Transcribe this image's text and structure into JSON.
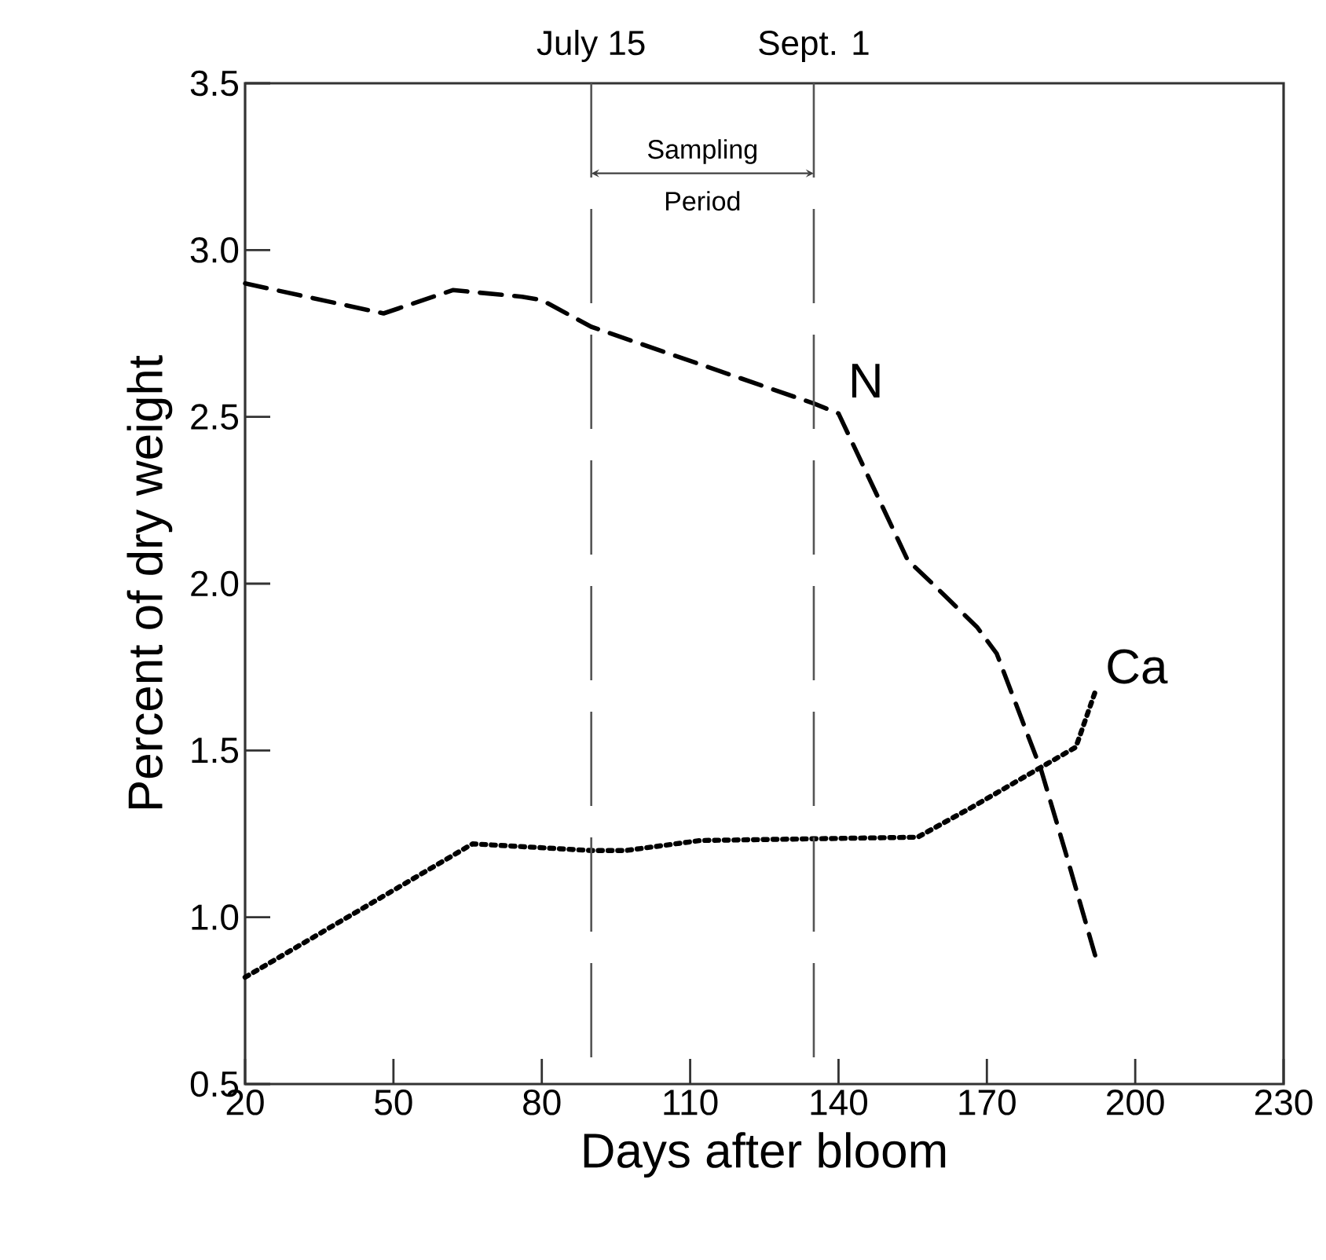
{
  "chart_data": {
    "type": "line",
    "xlabel": "Days after bloom",
    "ylabel": "Percent of dry weight",
    "xlim": [
      20,
      230
    ],
    "xticks": [
      20,
      50,
      80,
      110,
      140,
      170,
      200,
      230
    ],
    "ylim": [
      0.5,
      3.5
    ],
    "yticks": [
      0.5,
      {
        "value": 1,
        "label": "1.0"
      },
      1.5,
      {
        "value": 2,
        "label": "2.0"
      },
      2.5,
      {
        "value": 3,
        "label": "3.0"
      },
      3.5
    ],
    "grid": false,
    "legend": false,
    "marker": "none",
    "series": [
      {
        "name": "N",
        "color": "#000000",
        "line_style": "dashed",
        "x": [
          20,
          48,
          62,
          76,
          80,
          90,
          135,
          140,
          154,
          159,
          168,
          172,
          181,
          186,
          192
        ],
        "values": [
          2.9,
          2.81,
          2.88,
          2.86,
          2.85,
          2.77,
          2.54,
          2.51,
          2.07,
          2.0,
          1.87,
          1.79,
          1.44,
          1.19,
          0.88
        ]
      },
      {
        "name": "Ca",
        "color": "#000000",
        "line_style": "dotted",
        "x": [
          20,
          66,
          90,
          97,
          112,
          156,
          167,
          181,
          188,
          192
        ],
        "values": [
          0.82,
          1.22,
          1.2,
          1.2,
          1.23,
          1.24,
          1.33,
          1.45,
          1.51,
          1.68
        ]
      }
    ],
    "ref_lines": [
      {
        "axis": "x",
        "value": 90,
        "label": "July 15",
        "color": "#555555",
        "line_style": "dashed"
      },
      {
        "axis": "x",
        "value": 135,
        "label": "Sept. 1",
        "color": "#555555",
        "line_style": "dashed"
      }
    ],
    "annotations": [
      "Sampling Period"
    ]
  }
}
